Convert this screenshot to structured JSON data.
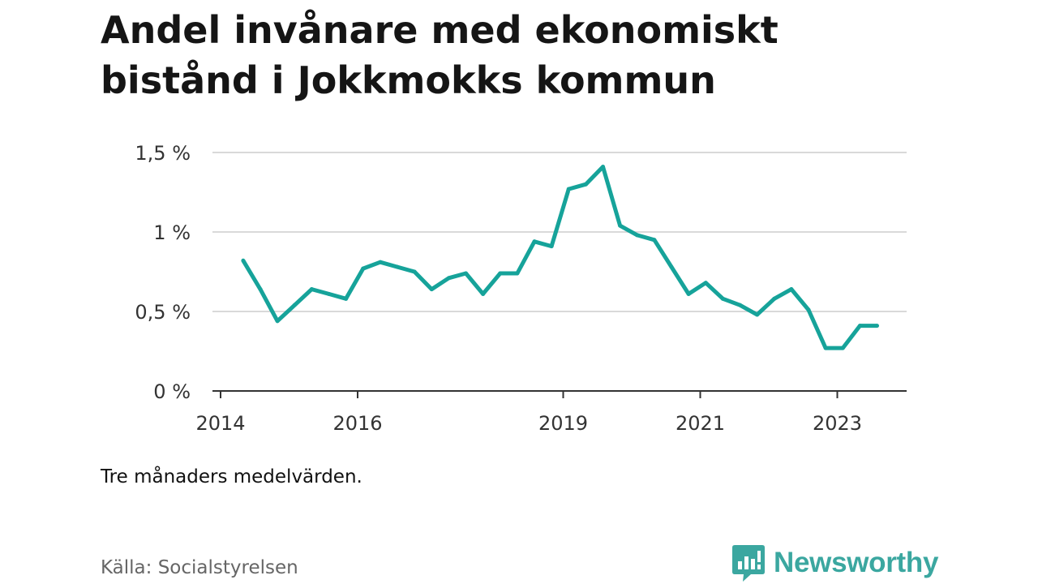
{
  "title": "Andel invånare med ekonomiskt bistånd i Jokkmokks kommun",
  "note": "Tre månaders medelvärden.",
  "source": "Källa: Socialstyrelsen",
  "brand": {
    "name": "Newsworthy",
    "icon": "newsworthy-logo-icon",
    "color": "#3ba7a0"
  },
  "chart_data": {
    "type": "line",
    "title": "Andel invånare med ekonomiskt bistånd i Jokkmokks kommun",
    "xlabel": "",
    "ylabel": "",
    "x_ticks": [
      "2014",
      "2016",
      "2019",
      "2021",
      "2023"
    ],
    "y_ticks": [
      "0 %",
      "0,5 %",
      "1 %",
      "1,5 %"
    ],
    "ylim": [
      0,
      1.5
    ],
    "xlim": [
      2014.0,
      2024.0
    ],
    "grid": true,
    "line_color": "#16a39a",
    "series": [
      {
        "x": [
          2014.33,
          2014.58,
          2014.83,
          2015.08,
          2015.33,
          2015.58,
          2015.83,
          2016.08,
          2016.33,
          2016.58,
          2016.83,
          2017.08,
          2017.33,
          2017.58,
          2017.83,
          2018.08,
          2018.33,
          2018.58,
          2018.83,
          2019.08,
          2019.33,
          2019.58,
          2019.83,
          2020.08,
          2020.33,
          2020.58,
          2020.83,
          2021.08,
          2021.33,
          2021.58,
          2021.83,
          2022.08,
          2022.33,
          2022.58,
          2022.83,
          2023.08,
          2023.33,
          2023.58
        ],
        "values": [
          0.82,
          0.64,
          0.44,
          0.54,
          0.64,
          0.61,
          0.58,
          0.77,
          0.81,
          0.78,
          0.75,
          0.64,
          0.71,
          0.74,
          0.61,
          0.74,
          0.74,
          0.94,
          0.91,
          1.27,
          1.3,
          1.41,
          1.04,
          0.98,
          0.95,
          0.78,
          0.61,
          0.68,
          0.58,
          0.54,
          0.48,
          0.58,
          0.64,
          0.51,
          0.27,
          0.27,
          0.41,
          0.41
        ]
      }
    ]
  }
}
